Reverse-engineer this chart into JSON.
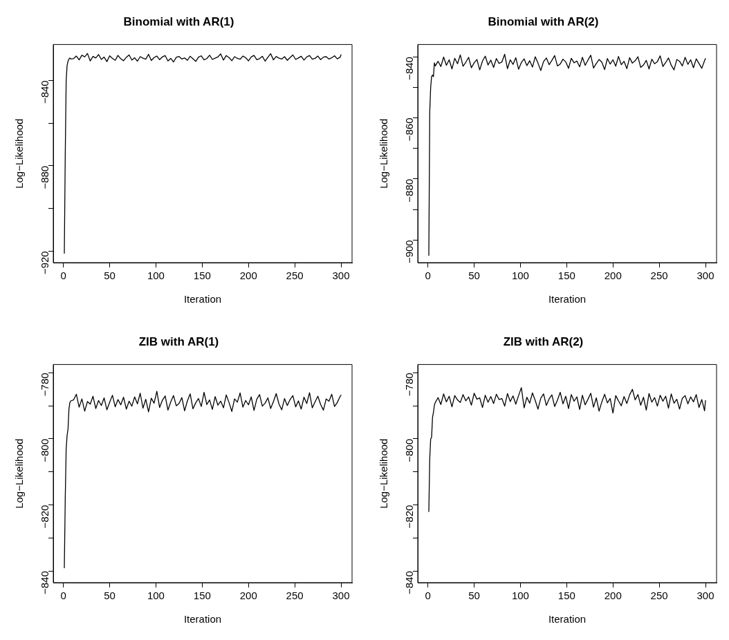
{
  "chart_data": [
    {
      "type": "line",
      "title": "Binomial with AR(1)",
      "xlabel": "Iteration",
      "ylabel": "Log−Likelihood",
      "grid": false,
      "legend": false,
      "marker": "none",
      "line_style": "solid",
      "xlim": [
        -10.96,
        311.96
      ],
      "xticks": [
        0,
        50,
        100,
        150,
        200,
        250,
        300
      ],
      "ylim": [
        -925.4,
        -823.2
      ],
      "yticks": [
        {
          "value": -840,
          "label": "−840"
        },
        {
          "value": -860,
          "label": null
        },
        {
          "value": -880,
          "label": "−880"
        },
        {
          "value": -900,
          "label": null
        },
        {
          "value": -920,
          "label": "−920"
        }
      ],
      "x": [
        1,
        2,
        3,
        4,
        5,
        6,
        7,
        8,
        11,
        14,
        17,
        20,
        23,
        26,
        29,
        32,
        35,
        38,
        41,
        44,
        47,
        50,
        53,
        56,
        59,
        62,
        65,
        68,
        71,
        74,
        77,
        80,
        83,
        86,
        89,
        92,
        95,
        98,
        101,
        104,
        107,
        110,
        113,
        116,
        119,
        122,
        125,
        128,
        131,
        134,
        137,
        140,
        143,
        146,
        149,
        152,
        155,
        158,
        161,
        164,
        167,
        170,
        173,
        176,
        179,
        182,
        185,
        188,
        191,
        194,
        197,
        200,
        203,
        206,
        209,
        212,
        215,
        218,
        221,
        224,
        227,
        230,
        233,
        236,
        239,
        242,
        245,
        248,
        251,
        254,
        257,
        260,
        263,
        266,
        269,
        272,
        275,
        278,
        281,
        284,
        287,
        290,
        293,
        296,
        299,
        300
      ],
      "series": [
        {
          "color": "#000000",
          "values": [
            -921,
            -875,
            -840,
            -833,
            -831,
            -830,
            -829.5,
            -830,
            -829.8,
            -828.6,
            -830.4,
            -828.2,
            -829.0,
            -827.4,
            -830.9,
            -828.8,
            -829.5,
            -827.9,
            -830.2,
            -829.1,
            -831.2,
            -828.5,
            -829.7,
            -830.6,
            -828.3,
            -829.9,
            -830.8,
            -829.2,
            -828.1,
            -830.5,
            -829.4,
            -831.0,
            -828.9,
            -829.6,
            -830.1,
            -827.8,
            -830.7,
            -829.3,
            -828.6,
            -830.3,
            -829.0,
            -828.4,
            -830.9,
            -829.7,
            -831.4,
            -829.2,
            -828.8,
            -830.0,
            -829.5,
            -830.6,
            -828.7,
            -829.9,
            -831.1,
            -829.1,
            -828.5,
            -830.4,
            -829.8,
            -828.2,
            -830.2,
            -829.6,
            -829.0,
            -827.6,
            -830.5,
            -828.4,
            -829.3,
            -830.8,
            -828.9,
            -829.7,
            -830.1,
            -828.6,
            -829.4,
            -830.9,
            -829.0,
            -828.3,
            -830.3,
            -829.8,
            -828.7,
            -831.0,
            -829.2,
            -827.5,
            -830.4,
            -828.8,
            -829.6,
            -830.0,
            -828.9,
            -830.6,
            -829.3,
            -828.1,
            -830.2,
            -829.5,
            -828.7,
            -830.5,
            -829.0,
            -828.4,
            -830.1,
            -829.7,
            -828.6,
            -830.3,
            -829.1,
            -828.9,
            -830.0,
            -829.4,
            -828.5,
            -829.9,
            -829.2,
            -828.0
          ]
        }
      ]
    },
    {
      "type": "line",
      "title": "Binomial with AR(2)",
      "xlabel": "Iteration",
      "ylabel": "Log−Likelihood",
      "grid": false,
      "legend": false,
      "marker": "none",
      "line_style": "solid",
      "xlim": [
        -10.96,
        311.96
      ],
      "xticks": [
        0,
        50,
        100,
        150,
        200,
        250,
        300
      ],
      "ylim": [
        -907.4,
        -836
      ],
      "yticks": [
        {
          "value": -840,
          "label": "−840"
        },
        {
          "value": -850,
          "label": null
        },
        {
          "value": -860,
          "label": "−860"
        },
        {
          "value": -870,
          "label": null
        },
        {
          "value": -880,
          "label": "−880"
        },
        {
          "value": -890,
          "label": null
        },
        {
          "value": -900,
          "label": "−900"
        }
      ],
      "x": [
        1,
        2,
        3,
        4,
        5,
        6,
        7,
        8,
        11,
        14,
        17,
        20,
        23,
        26,
        29,
        32,
        35,
        38,
        41,
        44,
        47,
        50,
        53,
        56,
        59,
        62,
        65,
        68,
        71,
        74,
        77,
        80,
        83,
        86,
        89,
        92,
        95,
        98,
        101,
        104,
        107,
        110,
        113,
        116,
        119,
        122,
        125,
        128,
        131,
        134,
        137,
        140,
        143,
        146,
        149,
        152,
        155,
        158,
        161,
        164,
        167,
        170,
        173,
        176,
        179,
        182,
        185,
        188,
        191,
        194,
        197,
        200,
        203,
        206,
        209,
        212,
        215,
        218,
        221,
        224,
        227,
        230,
        233,
        236,
        239,
        242,
        245,
        248,
        251,
        254,
        257,
        260,
        263,
        266,
        269,
        272,
        275,
        278,
        281,
        284,
        287,
        290,
        293,
        296,
        299,
        300
      ],
      "series": [
        {
          "color": "#000000",
          "values": [
            -905,
            -858,
            -850,
            -846.5,
            -846,
            -846.5,
            -842,
            -843,
            -841.5,
            -843.2,
            -840.1,
            -842.8,
            -841.0,
            -844.0,
            -840.5,
            -842.3,
            -839.4,
            -843.1,
            -841.8,
            -840.2,
            -843.6,
            -842.0,
            -840.9,
            -844.3,
            -841.4,
            -839.8,
            -842.7,
            -841.1,
            -843.5,
            -840.6,
            -842.2,
            -841.7,
            -839.2,
            -843.9,
            -841.0,
            -842.5,
            -840.3,
            -844.1,
            -841.9,
            -840.7,
            -842.9,
            -841.3,
            -843.4,
            -840.0,
            -842.1,
            -844.5,
            -841.6,
            -840.4,
            -842.6,
            -841.2,
            -839.6,
            -843.0,
            -842.4,
            -840.8,
            -841.7,
            -843.8,
            -840.5,
            -842.0,
            -841.4,
            -843.3,
            -840.2,
            -842.8,
            -841.1,
            -839.5,
            -843.7,
            -842.2,
            -840.9,
            -841.8,
            -844.2,
            -840.6,
            -842.4,
            -841.0,
            -843.1,
            -839.9,
            -842.6,
            -841.5,
            -843.9,
            -840.3,
            -842.1,
            -841.3,
            -840.0,
            -843.5,
            -842.7,
            -841.2,
            -844.0,
            -840.8,
            -842.3,
            -841.6,
            -839.7,
            -843.2,
            -841.9,
            -840.4,
            -842.8,
            -844.3,
            -840.9,
            -841.5,
            -843.0,
            -840.2,
            -842.5,
            -841.0,
            -843.6,
            -840.7,
            -842.2,
            -843.8,
            -841.3,
            -840.6
          ]
        }
      ]
    },
    {
      "type": "line",
      "title": "ZIB with AR(1)",
      "xlabel": "Iteration",
      "ylabel": "Log−Likelihood",
      "grid": false,
      "legend": false,
      "marker": "none",
      "line_style": "solid",
      "xlim": [
        -10.96,
        311.96
      ],
      "xticks": [
        0,
        50,
        100,
        150,
        200,
        250,
        300
      ],
      "ylim": [
        -843.5,
        -777.5
      ],
      "yticks": [
        {
          "value": -780,
          "label": "−780"
        },
        {
          "value": -790,
          "label": null
        },
        {
          "value": -800,
          "label": "−800"
        },
        {
          "value": -810,
          "label": null
        },
        {
          "value": -820,
          "label": "−820"
        },
        {
          "value": -830,
          "label": null
        },
        {
          "value": -840,
          "label": "−840"
        }
      ],
      "x": [
        1,
        2,
        3,
        4,
        5,
        6,
        7,
        8,
        11,
        14,
        17,
        20,
        23,
        26,
        29,
        32,
        35,
        38,
        41,
        44,
        47,
        50,
        53,
        56,
        59,
        62,
        65,
        68,
        71,
        74,
        77,
        80,
        83,
        86,
        89,
        92,
        95,
        98,
        101,
        104,
        107,
        110,
        113,
        116,
        119,
        122,
        125,
        128,
        131,
        134,
        137,
        140,
        143,
        146,
        149,
        152,
        155,
        158,
        161,
        164,
        167,
        170,
        173,
        176,
        179,
        182,
        185,
        188,
        191,
        194,
        197,
        200,
        203,
        206,
        209,
        212,
        215,
        218,
        221,
        224,
        227,
        230,
        233,
        236,
        239,
        242,
        245,
        248,
        251,
        254,
        257,
        260,
        263,
        266,
        269,
        272,
        275,
        278,
        281,
        284,
        287,
        290,
        293,
        296,
        299,
        300
      ],
      "series": [
        {
          "color": "#000000",
          "values": [
            -839,
            -818,
            -803,
            -799,
            -797,
            -791,
            -789,
            -788.5,
            -788.2,
            -786.5,
            -790.4,
            -787.9,
            -791.6,
            -788.7,
            -789.5,
            -787.1,
            -790.8,
            -788.4,
            -789.9,
            -787.6,
            -791.2,
            -788.9,
            -786.8,
            -790.3,
            -788.1,
            -789.7,
            -787.4,
            -791.0,
            -788.6,
            -790.1,
            -787.3,
            -789.4,
            -786.2,
            -790.7,
            -788.0,
            -791.8,
            -787.7,
            -789.2,
            -785.6,
            -790.5,
            -788.3,
            -787.0,
            -791.3,
            -788.8,
            -786.9,
            -790.0,
            -789.3,
            -787.5,
            -791.5,
            -788.5,
            -786.4,
            -790.9,
            -789.1,
            -787.8,
            -790.2,
            -785.9,
            -789.6,
            -788.2,
            -791.1,
            -787.2,
            -789.8,
            -788.6,
            -790.6,
            -786.7,
            -789.0,
            -791.7,
            -787.9,
            -788.9,
            -786.1,
            -790.4,
            -788.4,
            -789.7,
            -787.3,
            -791.4,
            -788.0,
            -786.6,
            -790.1,
            -789.2,
            -787.6,
            -790.8,
            -788.7,
            -786.3,
            -789.5,
            -791.2,
            -787.8,
            -789.9,
            -788.1,
            -786.9,
            -790.3,
            -788.5,
            -791.0,
            -787.4,
            -789.3,
            -786.0,
            -790.6,
            -788.8,
            -787.1,
            -789.6,
            -791.3,
            -787.9,
            -788.6,
            -786.5,
            -790.2,
            -789.0,
            -787.2,
            -786.8
          ]
        }
      ]
    },
    {
      "type": "line",
      "title": "ZIB with AR(2)",
      "xlabel": "Iteration",
      "ylabel": "Log−Likelihood",
      "grid": false,
      "legend": false,
      "marker": "none",
      "line_style": "solid",
      "xlim": [
        -10.96,
        311.96
      ],
      "xticks": [
        0,
        50,
        100,
        150,
        200,
        250,
        300
      ],
      "ylim": [
        -843.5,
        -777.5
      ],
      "yticks": [
        {
          "value": -780,
          "label": "−780"
        },
        {
          "value": -790,
          "label": null
        },
        {
          "value": -800,
          "label": "−800"
        },
        {
          "value": -810,
          "label": null
        },
        {
          "value": -820,
          "label": "−820"
        },
        {
          "value": -830,
          "label": null
        },
        {
          "value": -840,
          "label": "−840"
        }
      ],
      "x": [
        1,
        2,
        3,
        4,
        5,
        6,
        7,
        8,
        11,
        14,
        17,
        20,
        23,
        26,
        29,
        32,
        35,
        38,
        41,
        44,
        47,
        50,
        53,
        56,
        59,
        62,
        65,
        68,
        71,
        74,
        77,
        80,
        83,
        86,
        89,
        92,
        95,
        98,
        101,
        104,
        107,
        110,
        113,
        116,
        119,
        122,
        125,
        128,
        131,
        134,
        137,
        140,
        143,
        146,
        149,
        152,
        155,
        158,
        161,
        164,
        167,
        170,
        173,
        176,
        179,
        182,
        185,
        188,
        191,
        194,
        197,
        200,
        203,
        206,
        209,
        212,
        215,
        218,
        221,
        224,
        227,
        230,
        233,
        236,
        239,
        242,
        245,
        248,
        251,
        254,
        257,
        260,
        263,
        266,
        269,
        272,
        275,
        278,
        281,
        284,
        287,
        290,
        293,
        296,
        299,
        300
      ],
      "series": [
        {
          "color": "#000000",
          "values": [
            -822,
            -806,
            -800,
            -799.5,
            -793.5,
            -792,
            -789.8,
            -789,
            -787.5,
            -789.6,
            -786.4,
            -788.8,
            -787.1,
            -790.3,
            -786.9,
            -788.2,
            -789.0,
            -786.6,
            -788.5,
            -787.3,
            -789.8,
            -786.2,
            -788.0,
            -787.6,
            -790.5,
            -786.8,
            -788.9,
            -787.2,
            -789.3,
            -786.5,
            -788.1,
            -787.8,
            -790.1,
            -786.3,
            -788.7,
            -787.0,
            -789.5,
            -786.9,
            -784.5,
            -790.6,
            -787.4,
            -789.2,
            -786.1,
            -788.4,
            -791.0,
            -787.7,
            -786.4,
            -789.9,
            -787.9,
            -786.7,
            -790.2,
            -788.3,
            -785.9,
            -789.4,
            -787.1,
            -790.8,
            -786.6,
            -788.6,
            -787.3,
            -791.1,
            -786.8,
            -789.7,
            -788.0,
            -786.2,
            -790.4,
            -787.6,
            -791.6,
            -788.8,
            -786.5,
            -789.1,
            -787.8,
            -792.2,
            -786.9,
            -788.5,
            -790.0,
            -787.2,
            -789.3,
            -786.7,
            -785.0,
            -788.2,
            -786.6,
            -789.8,
            -787.4,
            -791.3,
            -786.3,
            -788.9,
            -787.5,
            -790.1,
            -786.8,
            -788.6,
            -787.1,
            -790.7,
            -786.4,
            -789.2,
            -788.0,
            -791.0,
            -787.7,
            -786.9,
            -789.4,
            -787.3,
            -788.8,
            -786.6,
            -790.5,
            -788.1,
            -791.5,
            -788.4
          ]
        }
      ]
    }
  ]
}
